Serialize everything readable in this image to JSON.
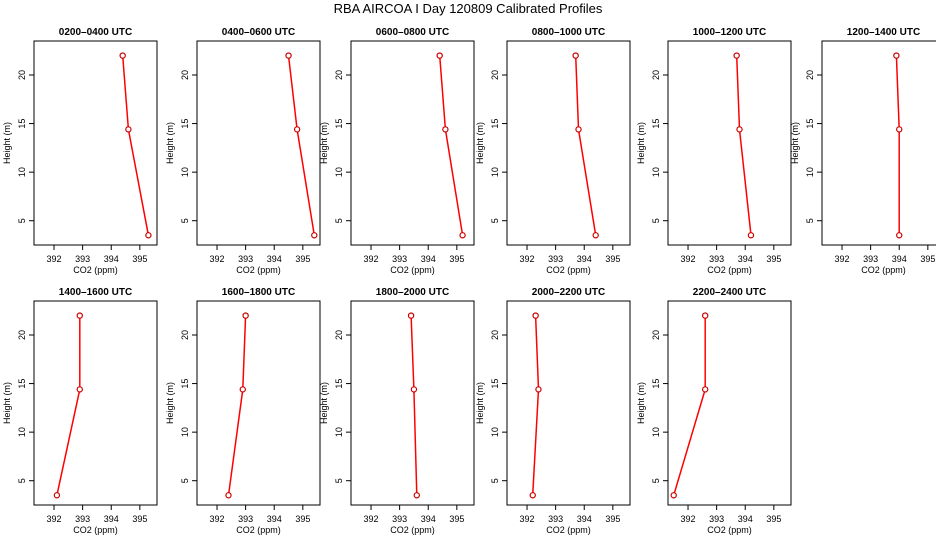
{
  "title": "RBA AIRCOA I  Day 120809  Calibrated Profiles",
  "colors": {
    "line": "#ff0000",
    "marker": "#cc0000",
    "axis": "#000000"
  },
  "chart_data": [
    {
      "type": "line",
      "title": "0200–0400 UTC",
      "xlabel": "CO2 (ppm)",
      "ylabel": "Height (m)",
      "xlim": [
        391.3,
        395.6
      ],
      "ylim": [
        2.5,
        23.5
      ],
      "xticks": [
        392,
        393,
        394,
        395
      ],
      "yticks": [
        5,
        10,
        15,
        20
      ],
      "x": [
        394.4,
        394.6,
        395.3
      ],
      "y": [
        22,
        14.4,
        3.5
      ]
    },
    {
      "type": "line",
      "title": "0400–0600 UTC",
      "xlabel": "CO2 (ppm)",
      "ylabel": "Height (m)",
      "xlim": [
        391.3,
        395.6
      ],
      "ylim": [
        2.5,
        23.5
      ],
      "xticks": [
        392,
        393,
        394,
        395
      ],
      "yticks": [
        5,
        10,
        15,
        20
      ],
      "x": [
        394.5,
        394.8,
        395.4
      ],
      "y": [
        22,
        14.4,
        3.5
      ]
    },
    {
      "type": "line",
      "title": "0600–0800 UTC",
      "xlabel": "CO2 (ppm)",
      "ylabel": "Height (m)",
      "xlim": [
        391.3,
        395.6
      ],
      "ylim": [
        2.5,
        23.5
      ],
      "xticks": [
        392,
        393,
        394,
        395
      ],
      "yticks": [
        5,
        10,
        15,
        20
      ],
      "x": [
        394.4,
        394.6,
        395.2
      ],
      "y": [
        22,
        14.4,
        3.5
      ]
    },
    {
      "type": "line",
      "title": "0800–1000 UTC",
      "xlabel": "CO2 (ppm)",
      "ylabel": "Height (m)",
      "xlim": [
        391.3,
        395.6
      ],
      "ylim": [
        2.5,
        23.5
      ],
      "xticks": [
        392,
        393,
        394,
        395
      ],
      "yticks": [
        5,
        10,
        15,
        20
      ],
      "x": [
        393.7,
        393.8,
        394.4
      ],
      "y": [
        22,
        14.4,
        3.5
      ]
    },
    {
      "type": "line",
      "title": "1000–1200 UTC",
      "xlabel": "CO2 (ppm)",
      "ylabel": "Height (m)",
      "xlim": [
        391.3,
        395.6
      ],
      "ylim": [
        2.5,
        23.5
      ],
      "xticks": [
        392,
        393,
        394,
        395
      ],
      "yticks": [
        5,
        10,
        15,
        20
      ],
      "x": [
        393.7,
        393.8,
        394.2
      ],
      "y": [
        22,
        14.4,
        3.5
      ]
    },
    {
      "type": "line",
      "title": "1200–1400 UTC",
      "xlabel": "CO2 (ppm)",
      "ylabel": "Height (m)",
      "xlim": [
        391.3,
        395.6
      ],
      "ylim": [
        2.5,
        23.5
      ],
      "xticks": [
        392,
        393,
        394,
        395
      ],
      "yticks": [
        5,
        10,
        15,
        20
      ],
      "x": [
        393.9,
        394.0,
        394.0
      ],
      "y": [
        22,
        14.4,
        3.5
      ]
    },
    {
      "type": "line",
      "title": "1400–1600 UTC",
      "xlabel": "CO2 (ppm)",
      "ylabel": "Height (m)",
      "xlim": [
        391.3,
        395.6
      ],
      "ylim": [
        2.5,
        23.5
      ],
      "xticks": [
        392,
        393,
        394,
        395
      ],
      "yticks": [
        5,
        10,
        15,
        20
      ],
      "x": [
        392.9,
        392.9,
        392.1
      ],
      "y": [
        22,
        14.4,
        3.5
      ]
    },
    {
      "type": "line",
      "title": "1600–1800 UTC",
      "xlabel": "CO2 (ppm)",
      "ylabel": "Height (m)",
      "xlim": [
        391.3,
        395.6
      ],
      "ylim": [
        2.5,
        23.5
      ],
      "xticks": [
        392,
        393,
        394,
        395
      ],
      "yticks": [
        5,
        10,
        15,
        20
      ],
      "x": [
        393.0,
        392.9,
        392.4
      ],
      "y": [
        22,
        14.4,
        3.5
      ]
    },
    {
      "type": "line",
      "title": "1800–2000 UTC",
      "xlabel": "CO2 (ppm)",
      "ylabel": "Height (m)",
      "xlim": [
        391.3,
        395.6
      ],
      "ylim": [
        2.5,
        23.5
      ],
      "xticks": [
        392,
        393,
        394,
        395
      ],
      "yticks": [
        5,
        10,
        15,
        20
      ],
      "x": [
        393.4,
        393.5,
        393.6
      ],
      "y": [
        22,
        14.4,
        3.5
      ]
    },
    {
      "type": "line",
      "title": "2000–2200 UTC",
      "xlabel": "CO2 (ppm)",
      "ylabel": "Height (m)",
      "xlim": [
        391.3,
        395.6
      ],
      "ylim": [
        2.5,
        23.5
      ],
      "xticks": [
        392,
        393,
        394,
        395
      ],
      "yticks": [
        5,
        10,
        15,
        20
      ],
      "x": [
        392.3,
        392.4,
        392.2
      ],
      "y": [
        22,
        14.4,
        3.5
      ]
    },
    {
      "type": "line",
      "title": "2200–2400 UTC",
      "xlabel": "CO2 (ppm)",
      "ylabel": "Height (m)",
      "xlim": [
        391.3,
        395.6
      ],
      "ylim": [
        2.5,
        23.5
      ],
      "xticks": [
        392,
        393,
        394,
        395
      ],
      "yticks": [
        5,
        10,
        15,
        20
      ],
      "x": [
        392.6,
        392.6,
        391.5
      ],
      "y": [
        22,
        14.4,
        3.5
      ]
    }
  ]
}
